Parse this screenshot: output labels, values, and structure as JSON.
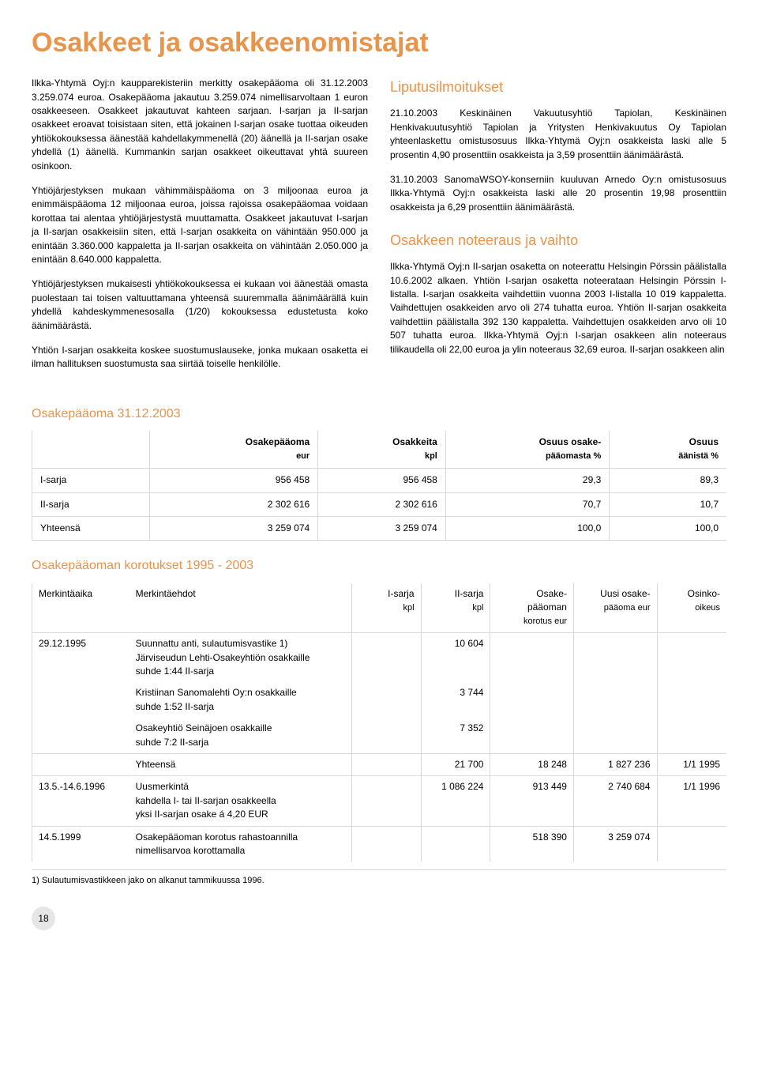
{
  "page_title": "Osakkeet ja osakkeenomistajat",
  "left_paragraphs": [
    "Ilkka-Yhtymä Oyj:n kaupparekisteriin merkitty osakepääoma oli 31.12.2003 3.259.074 euroa. Osakepääoma jakautuu 3.259.074 nimellisarvoltaan 1 euron osakkeeseen. Osakkeet jakautuvat kahteen sarjaan. I-sarjan ja II-sarjan osakkeet eroavat toisistaan siten, että jokainen I-sarjan osake tuottaa oikeuden yhtiökokouksessa äänestää kahdellakymmenellä (20) äänellä ja II-sarjan osake yhdellä (1) äänellä. Kummankin sarjan osakkeet oikeuttavat yhtä suureen osinkoon.",
    "Yhtiöjärjestyksen mukaan vähimmäispääoma on 3 miljoonaa euroa ja enimmäispääoma 12 miljoonaa euroa, joissa rajoissa osakepääomaa voidaan korottaa tai alentaa yhtiöjärjestystä muuttamatta. Osakkeet jakautuvat I-sarjan ja II-sarjan osakkeisiin siten, että I-sarjan osakkeita on vähintään 950.000 ja enintään 3.360.000 kappaletta ja II-sarjan osakkeita on vähintään 2.050.000 ja enintään 8.640.000 kappaletta.",
    "Yhtiöjärjestyksen mukaisesti yhtiökokouksessa ei kukaan voi äänestää omasta puolestaan tai toisen valtuuttamana yhteensä suuremmalla äänimäärällä kuin yhdellä kahdeskymmenesosalla (1/20) kokouksessa edustetusta koko äänimäärästä.",
    "Yhtiön I-sarjan osakkeita koskee suostumuslauseke, jonka mukaan osaketta ei ilman hallituksen suostumusta saa siirtää toiselle henkilölle."
  ],
  "right": {
    "heading1": "Liputusilmoitukset",
    "paragraphs1": [
      "21.10.2003 Keskinäinen Vakuutusyhtiö Tapiolan, Keskinäinen Henkivakuutusyhtiö Tapiolan ja Yritysten Henkivakuutus Oy Tapiolan yhteenlaskettu omistusosuus Ilkka-Yhtymä Oyj:n osakkeista laski alle 5 prosentin 4,90 prosenttiin osakkeista ja 3,59 prosenttiin äänimäärästä.",
      "31.10.2003 SanomaWSOY-konserniin kuuluvan Arnedo Oy:n omistusosuus Ilkka-Yhtymä Oyj:n osakkeista laski alle 20 prosentin 19,98 prosenttiin osakkeista ja 6,29 prosenttiin äänimäärästä."
    ],
    "heading2": "Osakkeen noteeraus ja vaihto",
    "paragraphs2": [
      "Ilkka-Yhtymä Oyj:n II-sarjan osaketta on noteerattu Helsingin Pörssin päälistalla 10.6.2002 alkaen. Yhtiön I-sarjan osaketta noteerataan Helsingin Pörssin I-listalla. I-sarjan osakkeita vaihdettiin vuonna 2003 I-listalla 10 019 kappaletta. Vaihdettujen osakkeiden arvo oli  274 tuhatta euroa. Yhtiön II-sarjan osakkeita vaihdettiin päälistalla 392 130 kappaletta. Vaihdettujen osakkeiden arvo oli 10 507 tuhatta euroa. Ilkka-Yhtymä Oyj:n I-sarjan osakkeen alin noteeraus tilikaudella oli 22,00 euroa ja ylin noteeraus 32,69 euroa. II-sarjan osakkeen alin"
    ]
  },
  "table1": {
    "title": "Osakepääoma 31.12.2003",
    "headers": {
      "col1": "",
      "col2_top": "Osakepääoma",
      "col2_sub": "eur",
      "col3_top": "Osakkeita",
      "col3_sub": "kpl",
      "col4_top": "Osuus osake-",
      "col4_sub": "pääomasta %",
      "col5_top": "Osuus",
      "col5_sub": "äänistä %"
    },
    "rows": [
      {
        "label": "I-sarja",
        "eur": "956 458",
        "kpl": "956 458",
        "pct_capital": "29,3",
        "pct_votes": "89,3"
      },
      {
        "label": "II-sarja",
        "eur": "2 302 616",
        "kpl": "2 302 616",
        "pct_capital": "70,7",
        "pct_votes": "10,7"
      }
    ],
    "total": {
      "label": "Yhteensä",
      "eur": "3 259 074",
      "kpl": "3 259 074",
      "pct_capital": "100,0",
      "pct_votes": "100,0"
    }
  },
  "table2": {
    "title": "Osakepääoman korotukset 1995 - 2003",
    "headers": {
      "c1": "Merkintäaika",
      "c2": "Merkintäehdot",
      "c3_top": "I-sarja",
      "c3_sub": "kpl",
      "c4_top": "II-sarja",
      "c4_sub": "kpl",
      "c5_top": "Osake-",
      "c5_mid": "pääoman",
      "c5_sub": "korotus eur",
      "c6_top": "Uusi osake-",
      "c6_sub": "pääoma eur",
      "c7_top": "Osinko-",
      "c7_sub": "oikeus"
    },
    "rows": [
      {
        "date": "29.12.1995",
        "desc": "Suunnattu anti, sulautumisvastike  1)\nJärviseudun Lehti-Osakeyhtiön osakkaille\nsuhde 1:44 II-sarja",
        "s1": "",
        "s2": "10 604",
        "kor": "",
        "uusi": "",
        "oik": ""
      },
      {
        "date": "",
        "desc": "Kristiinan Sanomalehti Oy:n osakkaille\nsuhde 1:52 II-sarja",
        "s1": "",
        "s2": "3 744",
        "kor": "",
        "uusi": "",
        "oik": ""
      },
      {
        "date": "",
        "desc": "Osakeyhtiö Seinäjoen osakkaille\nsuhde 7:2 II-sarja",
        "s1": "",
        "s2": "7 352",
        "kor": "",
        "uusi": "",
        "oik": ""
      },
      {
        "date": "",
        "desc": "Yhteensä",
        "s1": "",
        "s2": "21 700",
        "kor": "18 248",
        "uusi": "1 827 236",
        "oik": "1/1 1995",
        "sep": true
      },
      {
        "date": "13.5.-14.6.1996",
        "desc": "Uusmerkintä\nkahdella I- tai II-sarjan osakkeella\nyksi II-sarjan osake á 4,20 EUR",
        "s1": "",
        "s2": "1 086 224",
        "kor": "913 449",
        "uusi": "2 740 684",
        "oik": "1/1 1996",
        "sep": true
      },
      {
        "date": "14.5.1999",
        "desc": "Osakepääoman korotus rahastoannilla\nnimellisarvoa korottamalla",
        "s1": "",
        "s2": "",
        "kor": "518 390",
        "uusi": "3 259 074",
        "oik": "",
        "sep": true
      }
    ],
    "footnote": "1) Sulautumisvastikkeen jako on alkanut tammikuussa 1996."
  },
  "page_number": "18",
  "colors": {
    "accent": "#e8944a",
    "text": "#000000",
    "rule": "#d8d8d8",
    "page_circle": "#e6e6e6",
    "background": "#ffffff"
  }
}
